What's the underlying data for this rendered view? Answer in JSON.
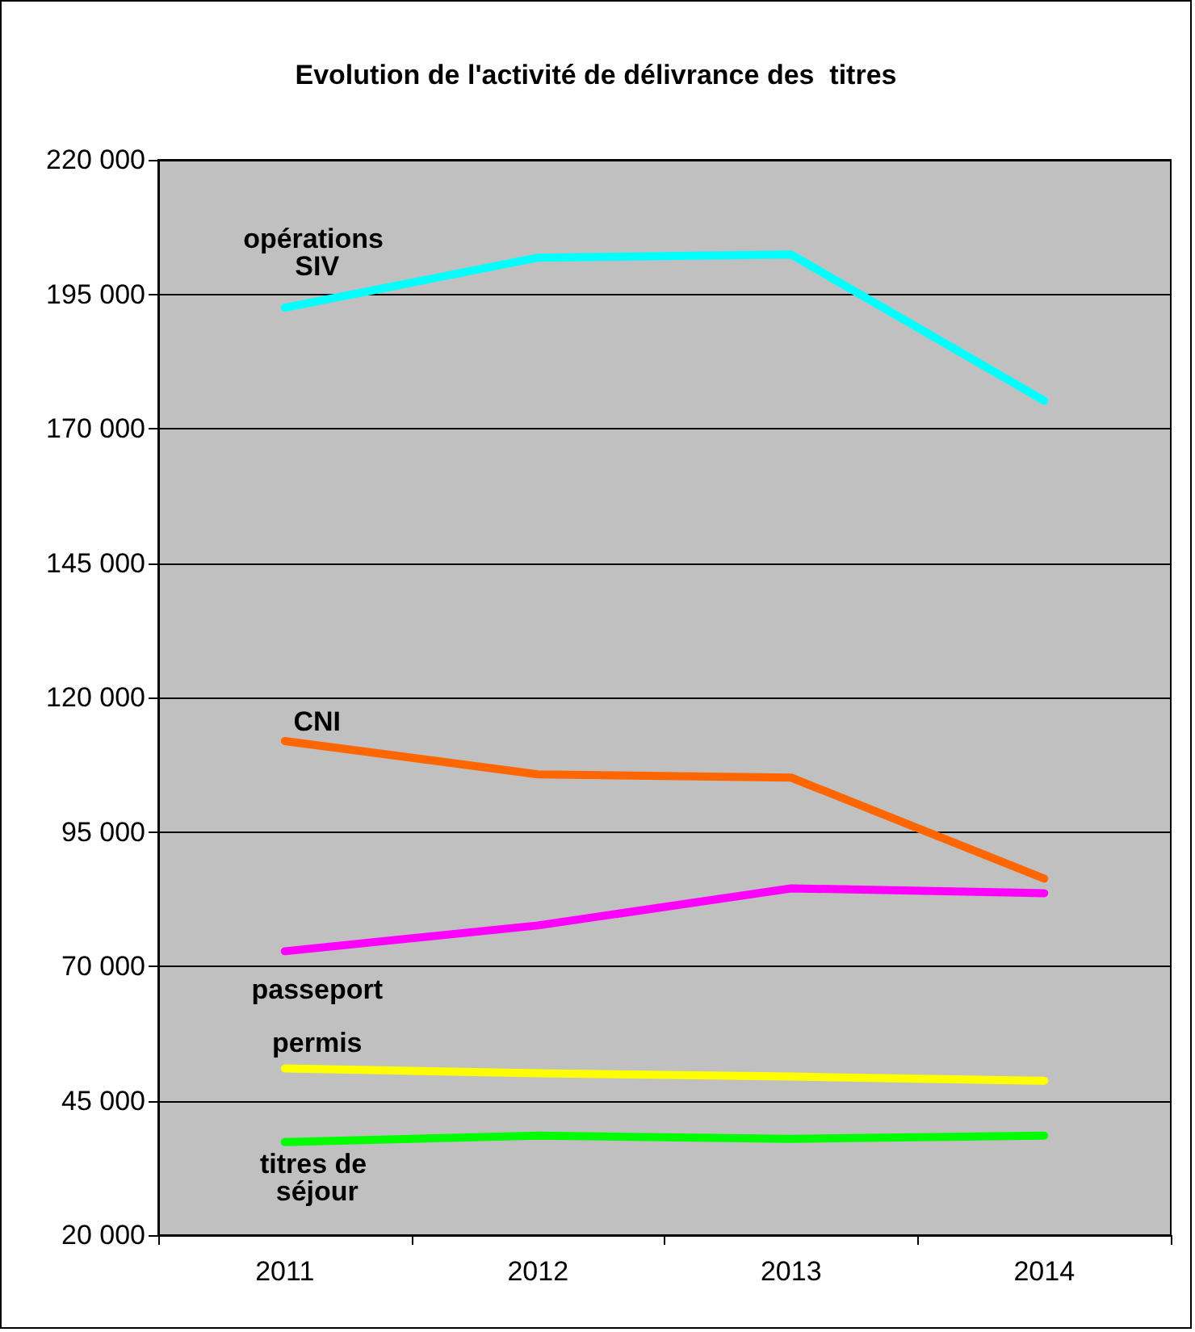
{
  "chart_data": {
    "type": "line",
    "title": "Evolution de l'activité de délivrance des  titres",
    "categories": [
      "2011",
      "2012",
      "2013",
      "2014"
    ],
    "series": [
      {
        "name": "opérations SIV",
        "color": "#00ffff",
        "values": [
          192500,
          201800,
          202400,
          175200
        ]
      },
      {
        "name": "CNI",
        "color": "#ff6600",
        "values": [
          111900,
          105700,
          105100,
          86300
        ]
      },
      {
        "name": "passeport",
        "color": "#ff00ff",
        "values": [
          72800,
          77600,
          84500,
          83600
        ]
      },
      {
        "name": "permis",
        "color": "#ffff00",
        "values": [
          51000,
          50100,
          49500,
          48700
        ]
      },
      {
        "name": "titres de séjour",
        "color": "#00ff00",
        "values": [
          37300,
          38500,
          37900,
          38500
        ]
      }
    ],
    "ylim": [
      20000,
      220000
    ],
    "yticks": [
      {
        "value": 20000,
        "label": "20 000"
      },
      {
        "value": 45000,
        "label": "45 000"
      },
      {
        "value": 70000,
        "label": "70 000"
      },
      {
        "value": 95000,
        "label": "95 000"
      },
      {
        "value": 120000,
        "label": "120 000"
      },
      {
        "value": 145000,
        "label": "145 000"
      },
      {
        "value": 170000,
        "label": "170 000"
      },
      {
        "value": 195000,
        "label": "195 000"
      },
      {
        "value": 220000,
        "label": "220 000"
      }
    ],
    "grid": "y",
    "legend": false,
    "marker": "none",
    "line_style": "solid"
  }
}
